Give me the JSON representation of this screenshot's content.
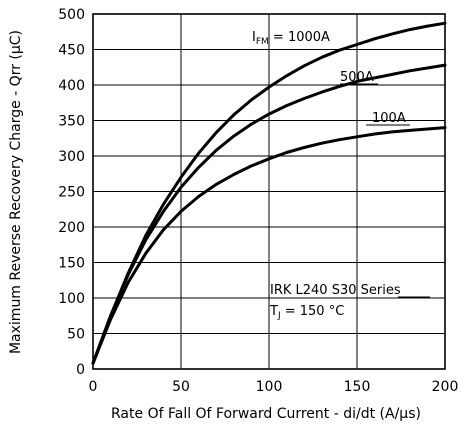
{
  "chart_data": {
    "type": "line",
    "xlabel": "Rate Of Fall Of Forward Current - di/dt (A/µs)",
    "ylabel": "Maximum Reverse Recovery Charge - Qrr (µC)",
    "xlim": [
      0,
      200
    ],
    "ylim": [
      0,
      500
    ],
    "x_ticks": [
      0,
      50,
      100,
      150,
      200
    ],
    "y_ticks": [
      0,
      50,
      100,
      150,
      200,
      250,
      300,
      350,
      400,
      450,
      500
    ],
    "grid": true,
    "series": [
      {
        "name": "1000A",
        "x": [
          0,
          10,
          20,
          30,
          40,
          50,
          60,
          70,
          80,
          90,
          100,
          110,
          120,
          130,
          140,
          150,
          160,
          170,
          180,
          190,
          200
        ],
        "y": [
          8,
          75,
          135,
          188,
          232,
          270,
          304,
          333,
          358,
          379,
          397,
          413,
          427,
          439,
          449,
          457,
          465,
          472,
          478,
          483,
          487
        ]
      },
      {
        "name": "500A",
        "x": [
          0,
          10,
          20,
          30,
          40,
          50,
          60,
          70,
          80,
          90,
          100,
          110,
          120,
          130,
          140,
          150,
          160,
          170,
          180,
          190,
          200
        ],
        "y": [
          8,
          75,
          133,
          182,
          222,
          256,
          284,
          308,
          328,
          345,
          359,
          371,
          381,
          390,
          398,
          405,
          410,
          415,
          420,
          424,
          428
        ]
      },
      {
        "name": "100A",
        "x": [
          0,
          10,
          20,
          30,
          40,
          50,
          60,
          70,
          80,
          90,
          100,
          110,
          120,
          130,
          140,
          150,
          160,
          170,
          180,
          190,
          200
        ],
        "y": [
          8,
          70,
          122,
          163,
          196,
          222,
          243,
          260,
          274,
          286,
          296,
          305,
          312,
          318,
          323,
          327,
          331,
          334,
          336,
          338,
          340
        ]
      }
    ],
    "annotations": {
      "label_1000": {
        "prefix": "I",
        "sub": "FM",
        "text": " = 1000A"
      },
      "label_500": "500A",
      "label_100": "100A",
      "series_name": "IRK L240  S30 Series",
      "tj": {
        "prefix": "T",
        "sub": "J",
        "text": " = 150 °C"
      }
    }
  }
}
